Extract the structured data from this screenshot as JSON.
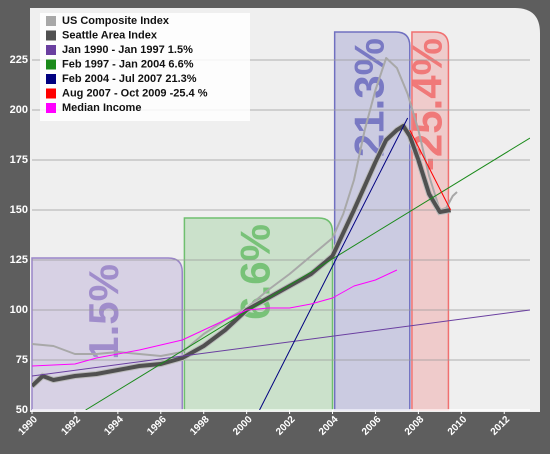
{
  "chart_data": {
    "type": "line",
    "xlim": [
      1990,
      2013.2
    ],
    "ylim": [
      50,
      250
    ],
    "xticks": [
      1990,
      1992,
      1994,
      1996,
      1998,
      2000,
      2002,
      2004,
      2006,
      2008,
      2010,
      2012
    ],
    "yticks": [
      50,
      75,
      100,
      125,
      150,
      175,
      200,
      225
    ],
    "grid": true,
    "regions": [
      {
        "label": "1.5%",
        "color": "#9a85c8",
        "x": [
          1990,
          1997
        ],
        "top": 126
      },
      {
        "label": "6.6%",
        "color": "#6fbf6f",
        "x": [
          1997.1,
          2004
        ],
        "top": 146
      },
      {
        "label": "21.3%",
        "color": "#7070c0",
        "x": [
          2004.1,
          2007.6
        ],
        "top": 239
      },
      {
        "label": "-25.4%",
        "color": "#f07070",
        "x": [
          2007.7,
          2009.4
        ],
        "top": 239
      }
    ],
    "series": [
      {
        "name": "US Composite Index",
        "color": "#a8a8a8",
        "width": 2,
        "x": [
          1990,
          1991,
          1992,
          1993,
          1994,
          1995,
          1996,
          1997,
          1998,
          1999,
          2000,
          2001,
          2002,
          2003,
          2004,
          2004.5,
          2005,
          2005.5,
          2006,
          2006.5,
          2007,
          2007.5,
          2008,
          2008.5,
          2009,
          2009.3,
          2009.6,
          2009.8
        ],
        "values": [
          83,
          82,
          78,
          78,
          79,
          78,
          77,
          79,
          88,
          95,
          101,
          110,
          118,
          127,
          136,
          148,
          165,
          190,
          210,
          226,
          221,
          208,
          190,
          167,
          150,
          151,
          157,
          159
        ]
      },
      {
        "name": "Seattle Area Index",
        "color": "#505050",
        "width": 4,
        "x": [
          1990,
          1990.5,
          1991,
          1992,
          1993,
          1994,
          1995,
          1996,
          1997,
          1998,
          1999,
          2000,
          2001,
          2002,
          2003,
          2004,
          2005,
          2006,
          2006.5,
          2007,
          2007.3,
          2007.6,
          2008,
          2008.5,
          2009,
          2009.5
        ],
        "values": [
          62,
          67,
          65,
          67,
          68,
          70,
          72,
          73,
          76,
          82,
          90,
          100,
          106,
          112,
          118,
          127,
          150,
          174,
          185,
          190,
          192,
          187,
          175,
          158,
          149,
          150
        ]
      },
      {
        "name": "Jan 1990 - Jan 1997 1.5%",
        "color": "#6a3fa0",
        "width": 1,
        "x": [
          1990,
          2013.2
        ],
        "values": [
          67,
          100
        ]
      },
      {
        "name": "Feb 1997 - Jan 2004 6.6%",
        "color": "#1a8a1a",
        "width": 1,
        "x": [
          1992.5,
          2013.2
        ],
        "values": [
          50,
          186
        ]
      },
      {
        "name": "Feb 2004 - Jul 2007 21.3%",
        "color": "#000080",
        "width": 1,
        "x": [
          2000.6,
          2007.5
        ],
        "values": [
          50,
          196
        ]
      },
      {
        "name": "Aug 2007 - Oct 2009 -25.4 %",
        "color": "#ff0000",
        "width": 1,
        "x": [
          2007.6,
          2009.5
        ],
        "values": [
          190,
          150
        ]
      },
      {
        "name": "Median Income",
        "color": "#ff00ff",
        "width": 1,
        "x": [
          1990,
          1992,
          1993,
          1995,
          1997,
          1999,
          2000,
          2001,
          2002,
          2003,
          2004,
          2005,
          2006,
          2007
        ],
        "values": [
          72,
          73,
          76,
          80,
          85,
          95,
          100,
          101,
          101,
          103,
          106,
          112,
          115,
          120
        ]
      }
    ]
  }
}
